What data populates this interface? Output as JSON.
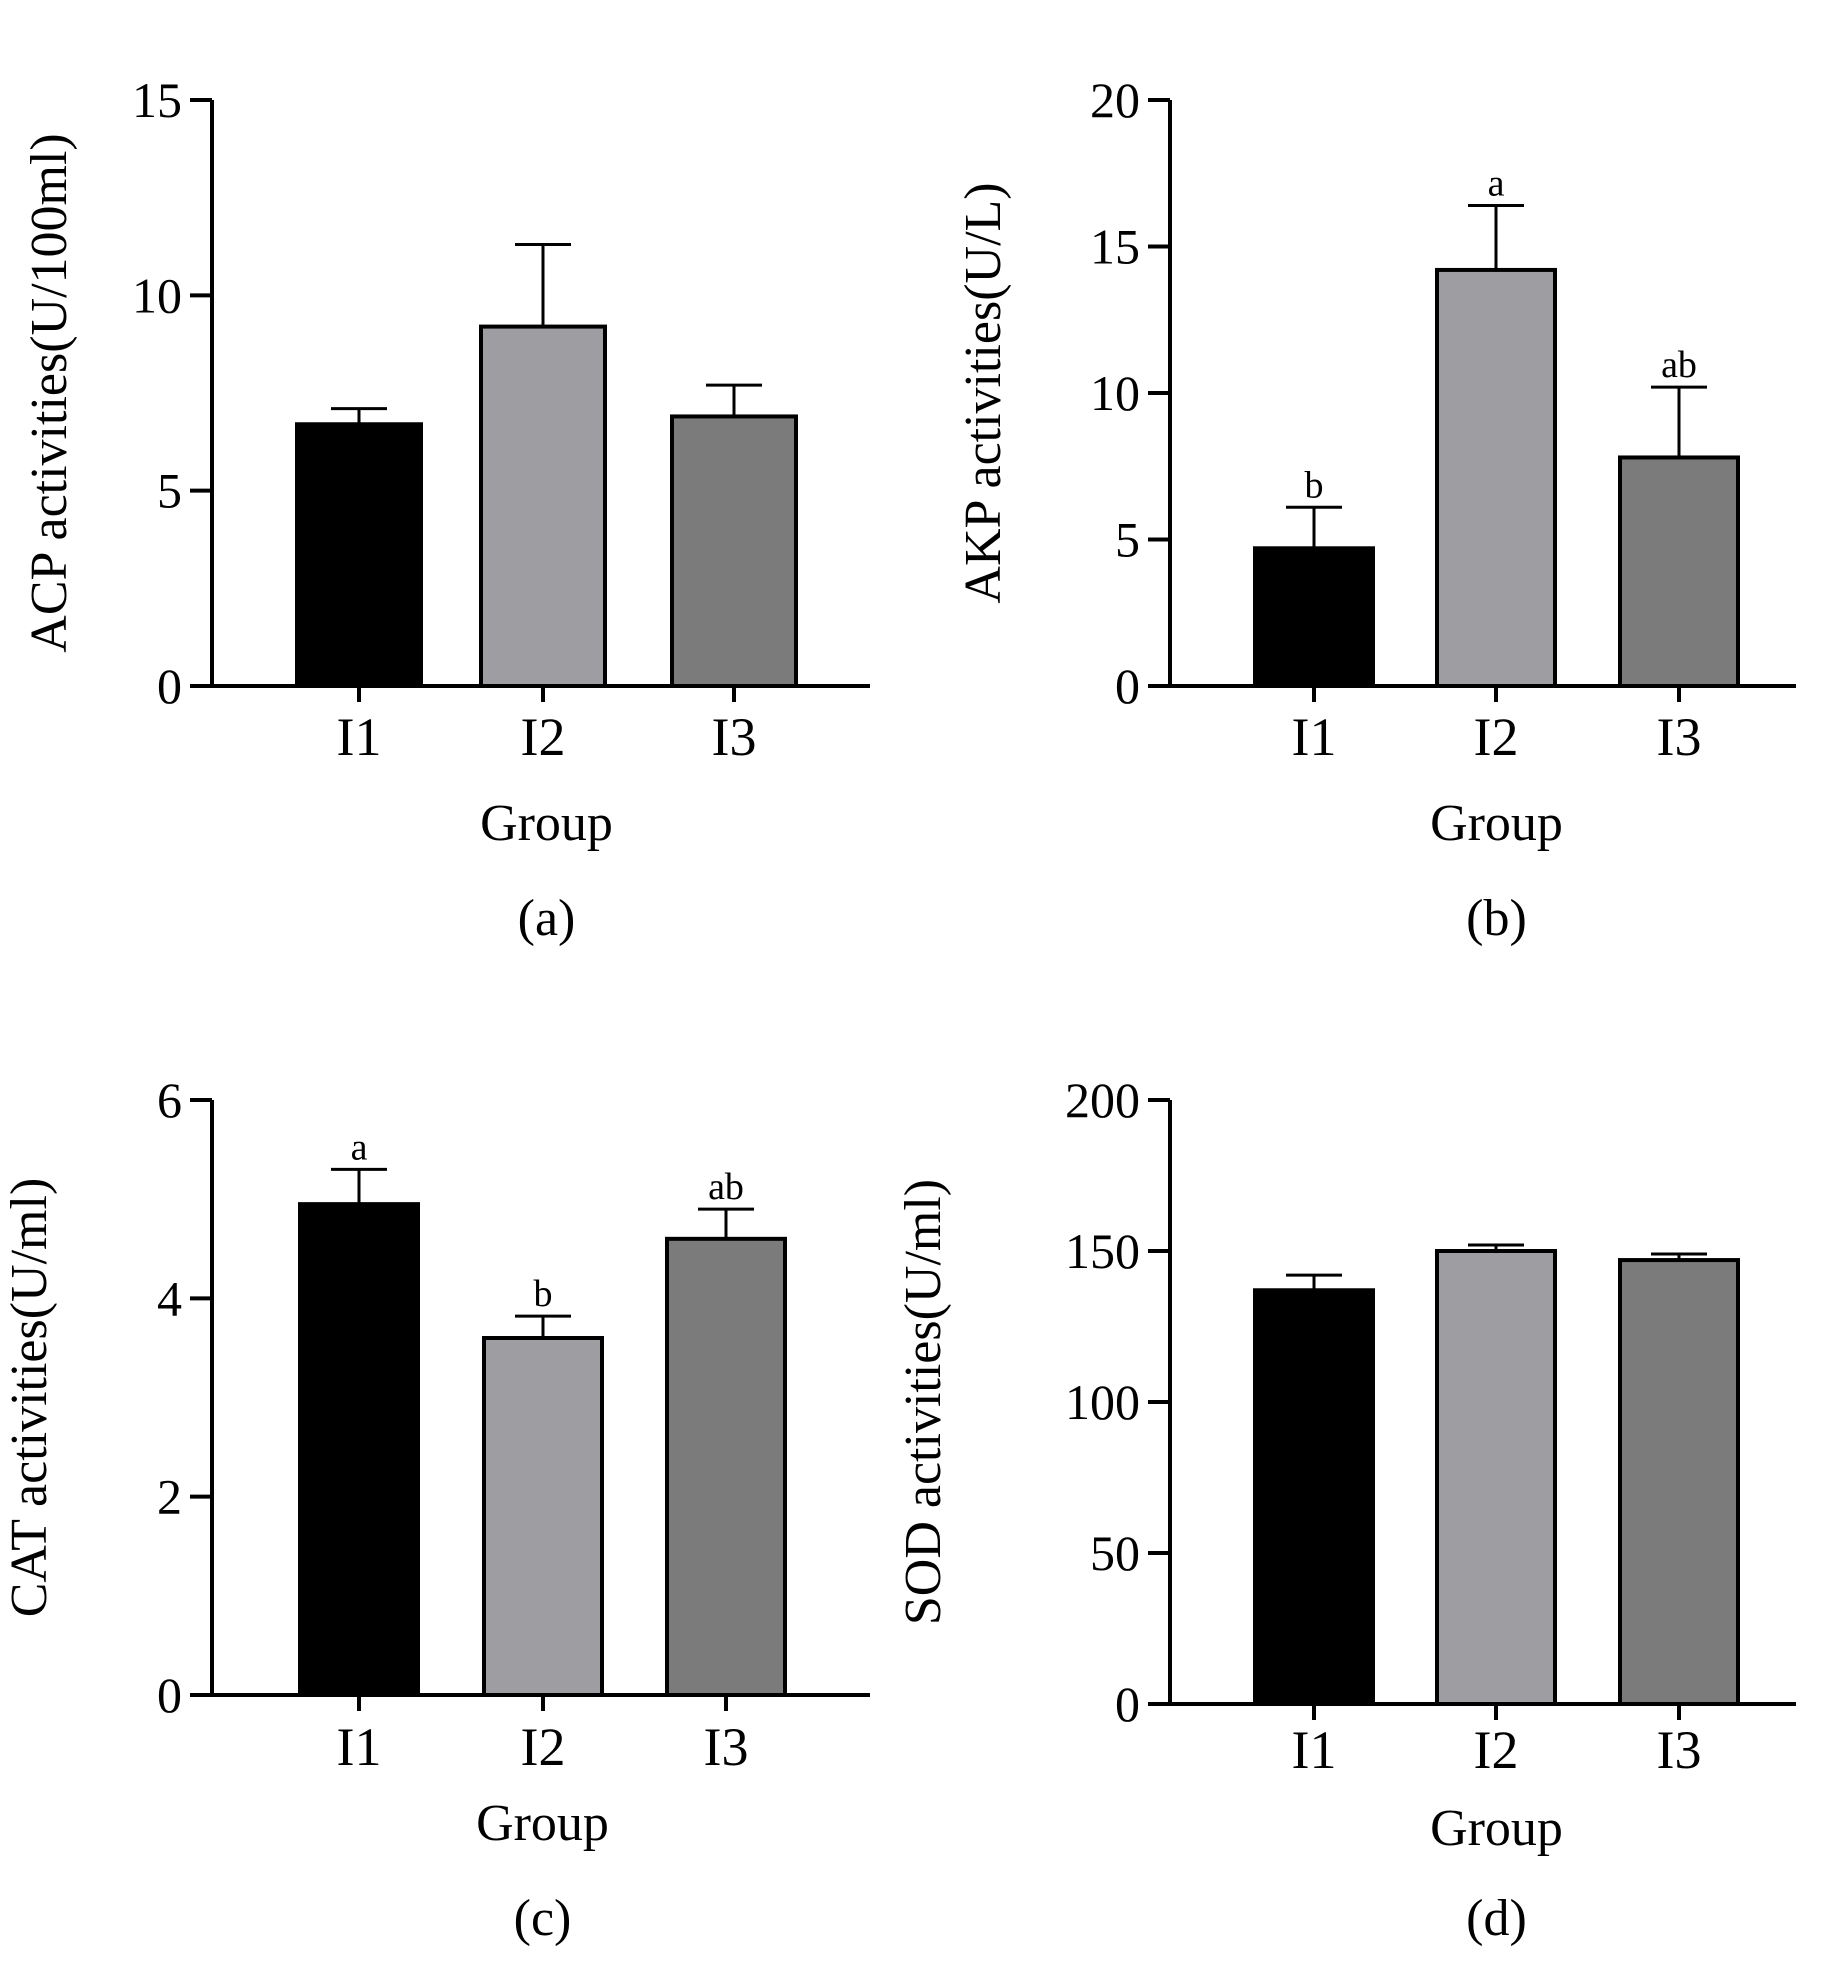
{
  "chart_data": [
    {
      "type": "bar",
      "panel": "(a)",
      "xlabel": "Group",
      "ylabel": "ACP activities(U/100ml)",
      "categories": [
        "I1",
        "I2",
        "I3"
      ],
      "values": [
        6.7,
        9.2,
        6.9
      ],
      "errors": [
        0.4,
        2.1,
        0.8
      ],
      "significance": [
        "",
        "",
        ""
      ],
      "ylim": [
        0,
        15
      ],
      "yticks": [
        0,
        5,
        10,
        15
      ],
      "colors": [
        "#000000",
        "#9e9ea2",
        "#7b7b7b"
      ]
    },
    {
      "type": "bar",
      "panel": "(b)",
      "xlabel": "Group",
      "ylabel": "AKP activities(U/L)",
      "categories": [
        "I1",
        "I2",
        "I3"
      ],
      "values": [
        4.7,
        14.2,
        7.8
      ],
      "errors": [
        1.4,
        2.2,
        2.4
      ],
      "significance": [
        "b",
        "a",
        "ab"
      ],
      "ylim": [
        0,
        20
      ],
      "yticks": [
        0,
        5,
        10,
        15,
        20
      ],
      "colors": [
        "#000000",
        "#9e9ea2",
        "#7b7b7b"
      ]
    },
    {
      "type": "bar",
      "panel": "(c)",
      "xlabel": "Group",
      "ylabel": "CAT activities(U/ml)",
      "categories": [
        "I1",
        "I2",
        "I3"
      ],
      "values": [
        4.95,
        3.6,
        4.6
      ],
      "errors": [
        0.35,
        0.22,
        0.3
      ],
      "significance": [
        "a",
        "b",
        "ab"
      ],
      "ylim": [
        0,
        6
      ],
      "yticks": [
        0,
        2,
        4,
        6
      ],
      "colors": [
        "#000000",
        "#9e9ea2",
        "#7b7b7b"
      ]
    },
    {
      "type": "bar",
      "panel": "(d)",
      "xlabel": "Group",
      "ylabel": "SOD activities(U/ml)",
      "categories": [
        "I1",
        "I2",
        "I3"
      ],
      "values": [
        137,
        150,
        147
      ],
      "errors": [
        5,
        2,
        2
      ],
      "significance": [
        "",
        "",
        ""
      ],
      "ylim": [
        0,
        200
      ],
      "yticks": [
        0,
        50,
        100,
        150,
        200
      ],
      "colors": [
        "#000000",
        "#9e9ea2",
        "#7b7b7b"
      ]
    }
  ]
}
